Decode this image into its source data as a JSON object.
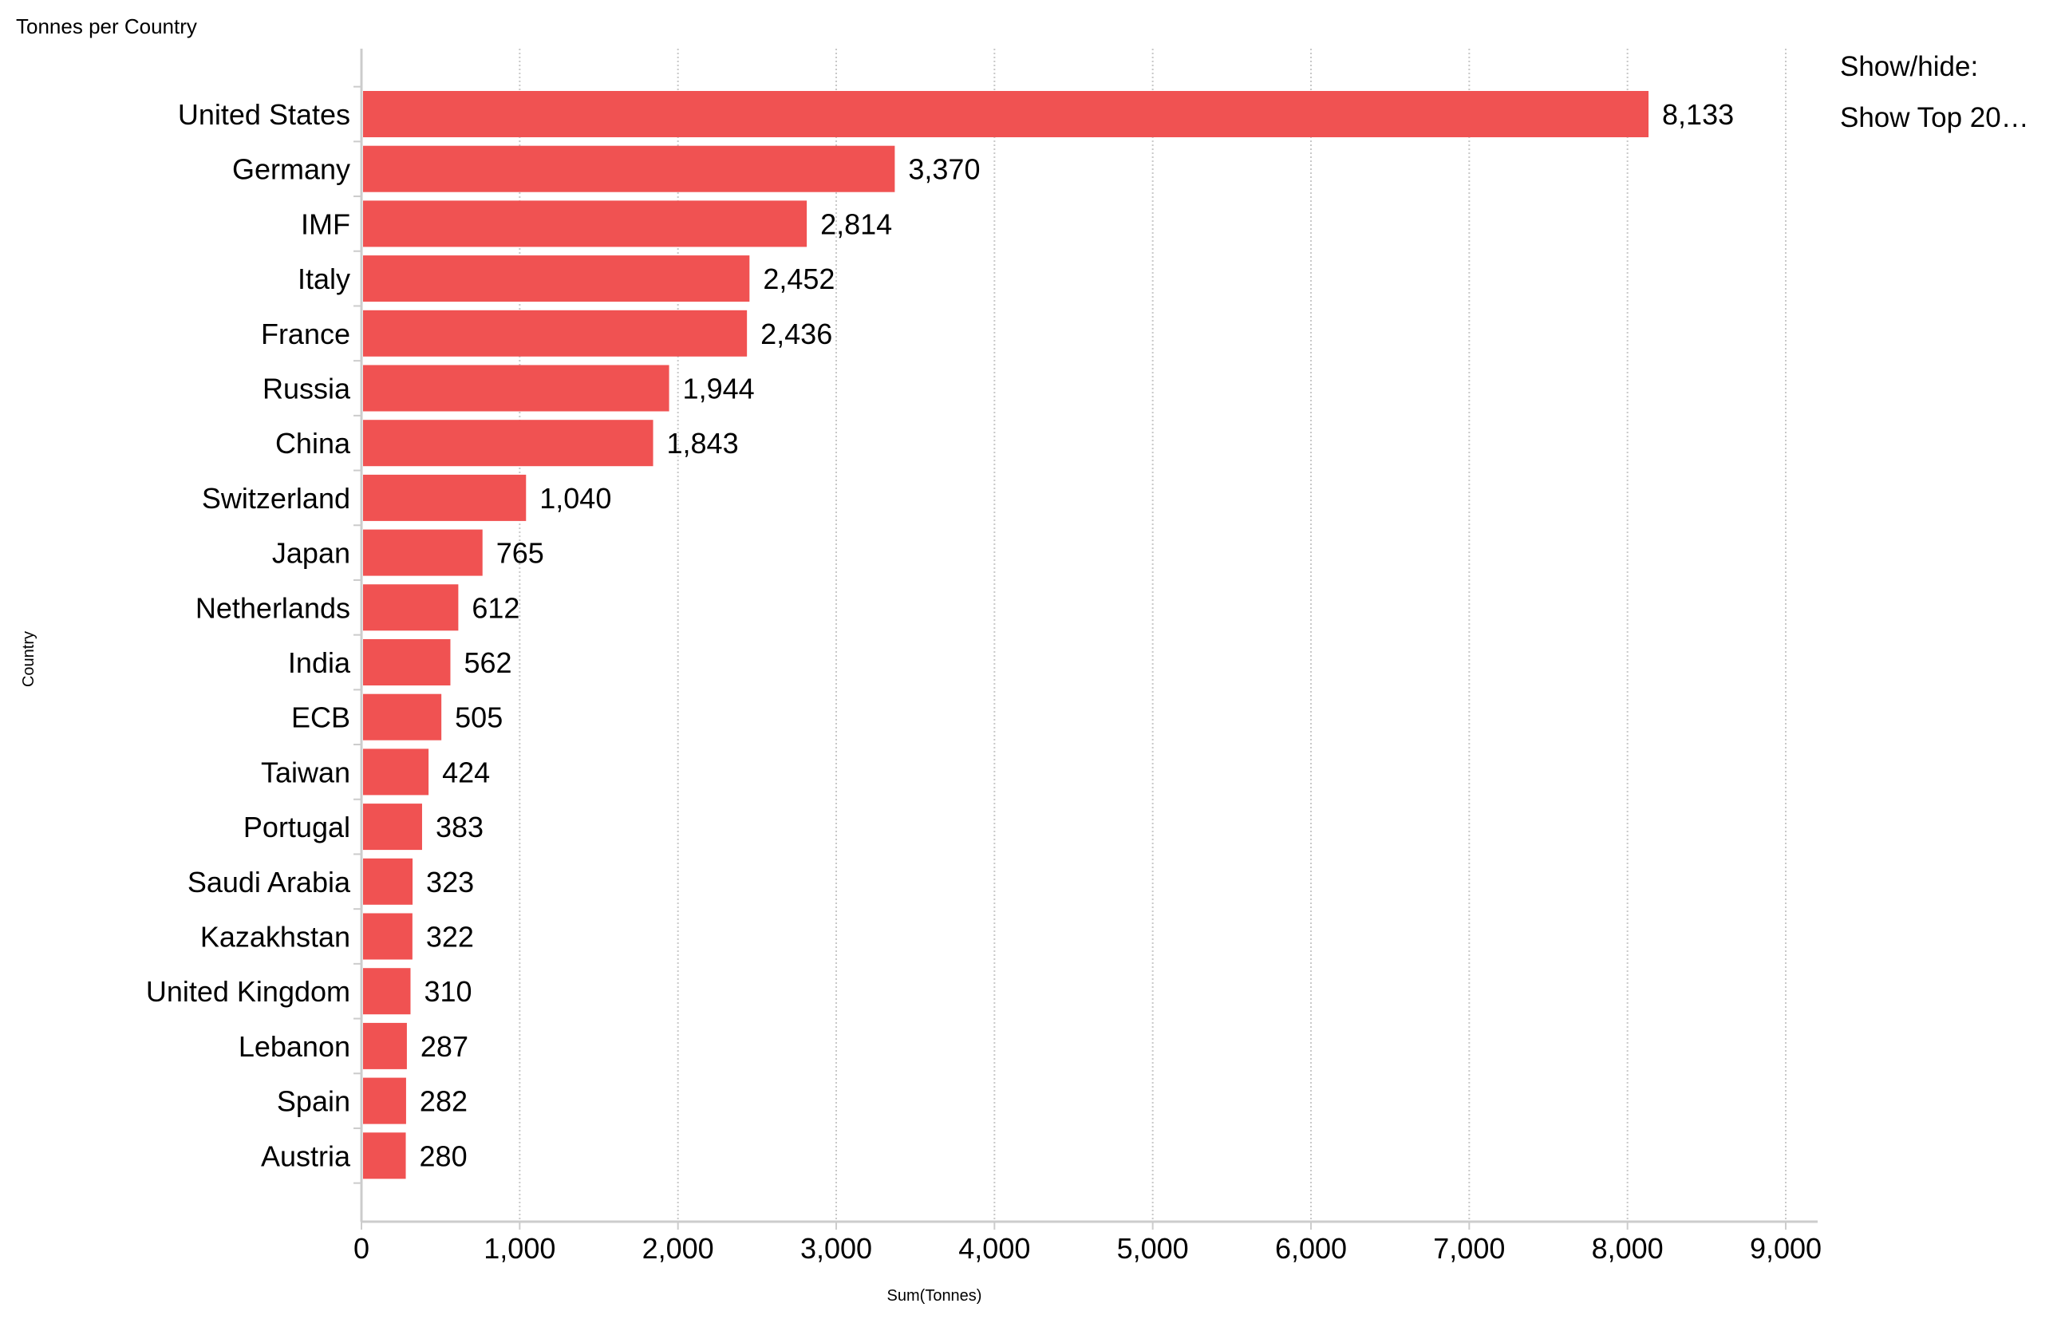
{
  "chart_data": {
    "type": "bar",
    "orientation": "horizontal",
    "title": "Tonnes per Country",
    "xlabel": "Sum(Tonnes)",
    "ylabel": "Country",
    "categories": [
      "United States",
      "Germany",
      "IMF",
      "Italy",
      "France",
      "Russia",
      "China",
      "Switzerland",
      "Japan",
      "Netherlands",
      "India",
      "ECB",
      "Taiwan",
      "Portugal",
      "Saudi Arabia",
      "Kazakhstan",
      "United Kingdom",
      "Lebanon",
      "Spain",
      "Austria"
    ],
    "values": [
      8133,
      3370,
      2814,
      2452,
      2436,
      1944,
      1843,
      1040,
      765,
      612,
      562,
      505,
      424,
      383,
      323,
      322,
      310,
      287,
      282,
      280
    ],
    "data_labels": [
      "8,133",
      "3,370",
      "2,814",
      "2,452",
      "2,436",
      "1,944",
      "1,843",
      "1,040",
      "765",
      "612",
      "562",
      "505",
      "424",
      "383",
      "323",
      "322",
      "310",
      "287",
      "282",
      "280"
    ],
    "xlim": [
      0,
      9000
    ],
    "xticks": [
      0,
      1000,
      2000,
      3000,
      4000,
      5000,
      6000,
      7000,
      8000,
      9000
    ],
    "xtick_labels": [
      "0",
      "1,000",
      "2,000",
      "3,000",
      "4,000",
      "5,000",
      "6,000",
      "7,000",
      "8,000",
      "9,000"
    ],
    "grid": "vertical dotted",
    "bar_color": "#F05252",
    "legend_placement": "top-right"
  },
  "legend": {
    "heading": "Show/hide:",
    "item": "Show Top 20…"
  }
}
